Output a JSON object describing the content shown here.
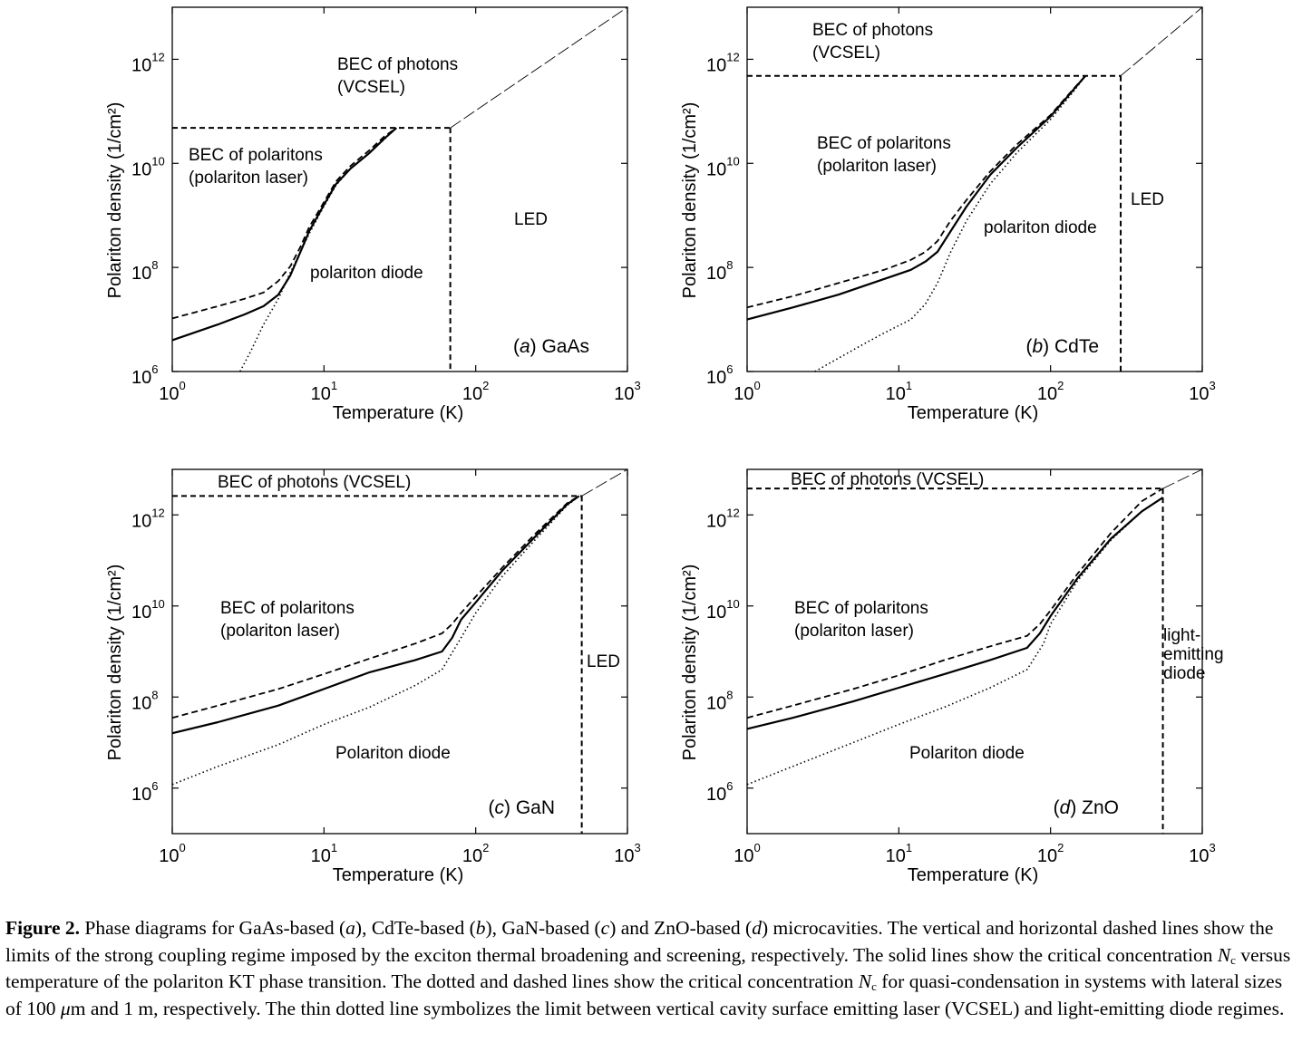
{
  "figure": {
    "caption": {
      "label": "Figure 2.",
      "segments": [
        {
          "t": " Phase diagrams for GaAs-based ("
        },
        {
          "t": "a",
          "i": true
        },
        {
          "t": "), CdTe-based ("
        },
        {
          "t": "b",
          "i": true
        },
        {
          "t": "), GaN-based ("
        },
        {
          "t": "c",
          "i": true
        },
        {
          "t": ") and ZnO-based ("
        },
        {
          "t": "d",
          "i": true
        },
        {
          "t": ") microcavities. The vertical and horizontal dashed lines show the limits of the strong coupling regime imposed by the exciton thermal broadening and screening, respectively. The solid lines show the critical concentration "
        },
        {
          "t": "N",
          "i": true
        },
        {
          "t": "c",
          "sub": true
        },
        {
          "t": " versus temperature of the polariton KT phase transition. The dotted and dashed lines show the critical concentration "
        },
        {
          "t": "N",
          "i": true
        },
        {
          "t": "c",
          "sub": true
        },
        {
          "t": " for quasi-condensation in systems with lateral sizes of 100 "
        },
        {
          "t": "μ",
          "i": true
        },
        {
          "t": "m and 1 m, respectively. The thin dotted line symbolizes the limit between vertical cavity surface emitting laser (VCSEL) and light-emitting diode regimes."
        }
      ]
    }
  },
  "chart_data": [
    {
      "type": "line",
      "panel": "a",
      "material": "GaAs",
      "xlabel": "Temperature (K)",
      "ylabel": "Polariton density (1/cm²)",
      "xscale": "log",
      "yscale": "log",
      "xlim": [
        1,
        1000
      ],
      "ylim": [
        1000000.0,
        10000000000000.0
      ],
      "xticks": [
        {
          "base": "10",
          "exp": "0",
          "v": 1
        },
        {
          "base": "10",
          "exp": "1",
          "v": 10
        },
        {
          "base": "10",
          "exp": "2",
          "v": 100
        },
        {
          "base": "10",
          "exp": "3",
          "v": 1000
        }
      ],
      "yticks": [
        {
          "base": "10",
          "exp": "6",
          "v": 1000000.0
        },
        {
          "base": "10",
          "exp": "8",
          "v": 100000000.0
        },
        {
          "base": "10",
          "exp": "10",
          "v": 10000000000.0
        },
        {
          "base": "10",
          "exp": "12",
          "v": 1000000000000.0
        }
      ],
      "tag": {
        "letter": "a",
        "material": "GaAs"
      },
      "limits": {
        "broadening_T": 68,
        "screening_N": 48000000000.0
      },
      "series": [
        {
          "name": "KT phase transition (solid)",
          "style": "solid",
          "x": [
            1,
            2,
            3,
            4,
            5,
            6,
            7,
            8,
            10,
            12,
            15,
            20,
            25,
            30
          ],
          "y": [
            4000000.0,
            8000000.0,
            12500000.0,
            18000000.0,
            30000000.0,
            70000000.0,
            200000000.0,
            500000000.0,
            1600000000.0,
            4000000000.0,
            8000000000.0,
            16000000000.0,
            30000000000.0,
            48000000000.0
          ]
        },
        {
          "name": "quasi-condensation, 1 m (dashed)",
          "style": "dashed",
          "x": [
            1,
            2,
            3,
            4,
            5,
            6,
            7,
            8,
            10,
            12,
            15,
            20,
            25,
            30
          ],
          "y": [
            10500000.0,
            18000000.0,
            25000000.0,
            33000000.0,
            55000000.0,
            105000000.0,
            250000000.0,
            600000000.0,
            1800000000.0,
            4500000000.0,
            9000000000.0,
            18000000000.0,
            33000000000.0,
            48000000000.0
          ]
        },
        {
          "name": "quasi-condensation, 100 µm (dotted)",
          "style": "dotted",
          "x": [
            2.8,
            3.3,
            4,
            5,
            6,
            7,
            8,
            10,
            12,
            15,
            20,
            25,
            30
          ],
          "y": [
            1000000.0,
            2500000.0,
            8000000.0,
            25000000.0,
            80000000.0,
            200000000.0,
            450000000.0,
            1500000000.0,
            3800000000.0,
            8000000000.0,
            16000000000.0,
            29000000000.0,
            48000000000.0
          ]
        },
        {
          "name": "VCSEL / LED limit (thin dotted)",
          "style": "thin",
          "x": [
            68,
            1000
          ],
          "y": [
            48000000000.0,
            10000000000000.0
          ]
        }
      ],
      "annotations": [
        {
          "lines": [
            "BEC of photons",
            "(VCSEL)"
          ],
          "region": "upper middle"
        },
        {
          "lines": [
            "BEC of polaritons",
            "(polariton laser)"
          ],
          "region": "upper left"
        },
        {
          "lines": [
            "polariton diode"
          ],
          "region": "lower middle"
        },
        {
          "lines": [
            "LED"
          ],
          "region": "right"
        }
      ]
    },
    {
      "type": "line",
      "panel": "b",
      "material": "CdTe",
      "xlabel": "Temperature (K)",
      "ylabel": "Polariton density (1/cm²)",
      "xscale": "log",
      "yscale": "log",
      "xlim": [
        1,
        1000
      ],
      "ylim": [
        1000000.0,
        10000000000000.0
      ],
      "xticks": [
        {
          "base": "10",
          "exp": "0",
          "v": 1
        },
        {
          "base": "10",
          "exp": "1",
          "v": 10
        },
        {
          "base": "10",
          "exp": "2",
          "v": 100
        },
        {
          "base": "10",
          "exp": "3",
          "v": 1000
        }
      ],
      "yticks": [
        {
          "base": "10",
          "exp": "6",
          "v": 1000000.0
        },
        {
          "base": "10",
          "exp": "8",
          "v": 100000000.0
        },
        {
          "base": "10",
          "exp": "10",
          "v": 10000000000.0
        },
        {
          "base": "10",
          "exp": "12",
          "v": 1000000000000.0
        }
      ],
      "tag": {
        "letter": "b",
        "material": "CdTe"
      },
      "limits": {
        "broadening_T": 290,
        "screening_N": 480000000000.0
      },
      "series": [
        {
          "name": "KT phase transition (solid)",
          "style": "solid",
          "x": [
            1,
            2,
            4,
            8,
            12,
            15,
            18,
            22,
            28,
            40,
            60,
            100,
            140,
            170
          ],
          "y": [
            10000000.0,
            17000000.0,
            30000000.0,
            60000000.0,
            90000000.0,
            130000000.0,
            200000000.0,
            500000000.0,
            1500000000.0,
            6000000000.0,
            20000000000.0,
            80000000000.0,
            250000000000.0,
            480000000000.0
          ]
        },
        {
          "name": "quasi-condensation, 1 m (dashed)",
          "style": "dashed",
          "x": [
            1,
            2,
            4,
            8,
            12,
            15,
            18,
            22,
            28,
            40,
            60,
            100,
            140,
            170
          ],
          "y": [
            17000000.0,
            28000000.0,
            50000000.0,
            90000000.0,
            140000000.0,
            200000000.0,
            320000000.0,
            800000000.0,
            2000000000.0,
            7000000000.0,
            23000000000.0,
            85000000000.0,
            260000000000.0,
            480000000000.0
          ]
        },
        {
          "name": "quasi-condensation, 100 µm (dotted)",
          "style": "dotted",
          "x": [
            2.8,
            4,
            6,
            8,
            12,
            15,
            18,
            22,
            28,
            40,
            60,
            100,
            140,
            170
          ],
          "y": [
            1000000.0,
            1800000.0,
            3500000.0,
            5500000.0,
            10000000.0,
            20000000.0,
            50000000.0,
            200000000.0,
            800000000.0,
            4000000000.0,
            16000000000.0,
            70000000000.0,
            230000000000.0,
            480000000000.0
          ]
        },
        {
          "name": "VCSEL / LED limit (thin dotted)",
          "style": "thin",
          "x": [
            290,
            1000
          ],
          "y": [
            480000000000.0,
            10000000000000.0
          ]
        }
      ],
      "annotations": [
        {
          "lines": [
            "BEC of photons",
            "(VCSEL)"
          ],
          "region": "top"
        },
        {
          "lines": [
            "BEC of polaritons",
            "(polariton laser)"
          ],
          "region": "upper middle"
        },
        {
          "lines": [
            "polariton diode"
          ],
          "region": "middle right"
        },
        {
          "lines": [
            "LED"
          ],
          "region": "right"
        }
      ]
    },
    {
      "type": "line",
      "panel": "c",
      "material": "GaN",
      "xlabel": "Temperature (K)",
      "ylabel": "Polariton density (1/cm²)",
      "xscale": "log",
      "yscale": "log",
      "xlim": [
        1,
        1000
      ],
      "ylim": [
        100000.0,
        10000000000000.0
      ],
      "xticks": [
        {
          "base": "10",
          "exp": "0",
          "v": 1
        },
        {
          "base": "10",
          "exp": "1",
          "v": 10
        },
        {
          "base": "10",
          "exp": "2",
          "v": 100
        },
        {
          "base": "10",
          "exp": "3",
          "v": 1000
        }
      ],
      "yticks": [
        {
          "base": "10",
          "exp": "6",
          "v": 1000000.0
        },
        {
          "base": "10",
          "exp": "8",
          "v": 100000000.0
        },
        {
          "base": "10",
          "exp": "10",
          "v": 10000000000.0
        },
        {
          "base": "10",
          "exp": "12",
          "v": 1000000000000.0
        }
      ],
      "tag": {
        "letter": "c",
        "material": "GaN"
      },
      "limits": {
        "broadening_T": 500,
        "screening_N": 2600000000000.0
      },
      "series": [
        {
          "name": "KT phase transition (solid)",
          "style": "solid",
          "x": [
            1,
            2,
            5,
            10,
            20,
            40,
            60,
            70,
            80,
            100,
            150,
            250,
            400,
            480
          ],
          "y": [
            16000000.0,
            28000000.0,
            65000000.0,
            150000000.0,
            350000000.0,
            650000000.0,
            1000000000.0,
            2000000000.0,
            5000000000.0,
            12000000000.0,
            60000000000.0,
            350000000000.0,
            1700000000000.0,
            2600000000000.0
          ]
        },
        {
          "name": "quasi-condensation, 1 m (dashed)",
          "style": "dashed",
          "x": [
            1,
            2,
            5,
            10,
            20,
            40,
            60,
            70,
            80,
            100,
            150,
            250,
            400,
            480
          ],
          "y": [
            35000000.0,
            65000000.0,
            150000000.0,
            320000000.0,
            700000000.0,
            1500000000.0,
            2500000000.0,
            4000000000.0,
            7000000000.0,
            16000000000.0,
            70000000000.0,
            400000000000.0,
            1800000000000.0,
            2600000000000.0
          ]
        },
        {
          "name": "quasi-condensation, 100 µm (dotted)",
          "style": "dotted",
          "x": [
            1,
            2,
            5,
            10,
            20,
            40,
            60,
            80,
            100,
            150,
            250,
            400,
            480
          ],
          "y": [
            1200000.0,
            3000000.0,
            9000000.0,
            25000000.0,
            60000000.0,
            180000000.0,
            400000000.0,
            2000000000.0,
            7000000000.0,
            45000000000.0,
            300000000000.0,
            1600000000000.0,
            2600000000000.0
          ]
        },
        {
          "name": "VCSEL / LED limit (thin dotted)",
          "style": "thin",
          "x": [
            500,
            1000
          ],
          "y": [
            2600000000000.0,
            10000000000000.0
          ]
        }
      ],
      "annotations": [
        {
          "lines": [
            "BEC of photons (VCSEL)"
          ],
          "region": "top"
        },
        {
          "lines": [
            "BEC of polaritons",
            "(polariton laser)"
          ],
          "region": "upper left"
        },
        {
          "lines": [
            "LED"
          ],
          "region": "right"
        },
        {
          "lines": [
            "Polariton diode"
          ],
          "region": "lower middle"
        }
      ]
    },
    {
      "type": "line",
      "panel": "d",
      "material": "ZnO",
      "xlabel": "Temperature (K)",
      "ylabel": "Polariton density (1/cm²)",
      "xscale": "log",
      "yscale": "log",
      "xlim": [
        1,
        1000
      ],
      "ylim": [
        100000.0,
        10000000000000.0
      ],
      "xticks": [
        {
          "base": "10",
          "exp": "0",
          "v": 1
        },
        {
          "base": "10",
          "exp": "1",
          "v": 10
        },
        {
          "base": "10",
          "exp": "2",
          "v": 100
        },
        {
          "base": "10",
          "exp": "3",
          "v": 1000
        }
      ],
      "yticks": [
        {
          "base": "10",
          "exp": "6",
          "v": 1000000.0
        },
        {
          "base": "10",
          "exp": "8",
          "v": 100000000.0
        },
        {
          "base": "10",
          "exp": "10",
          "v": 10000000000.0
        },
        {
          "base": "10",
          "exp": "12",
          "v": 1000000000000.0
        }
      ],
      "tag": {
        "letter": "d",
        "material": "ZnO"
      },
      "limits": {
        "broadening_T": 550,
        "screening_N": 3800000000000.0
      },
      "series": [
        {
          "name": "KT phase transition (solid)",
          "style": "solid",
          "x": [
            1,
            2,
            5,
            10,
            20,
            40,
            70,
            85,
            100,
            150,
            250,
            400,
            550
          ],
          "y": [
            20000000.0,
            35000000.0,
            80000000.0,
            160000000.0,
            320000000.0,
            650000000.0,
            1200000000.0,
            2500000000.0,
            6000000000.0,
            40000000000.0,
            300000000000.0,
            1200000000000.0,
            2400000000000.0
          ]
        },
        {
          "name": "quasi-condensation, 1 m (dashed)",
          "style": "dashed",
          "x": [
            1,
            2,
            5,
            10,
            20,
            40,
            70,
            85,
            100,
            150,
            250,
            400,
            550
          ],
          "y": [
            35000000.0,
            65000000.0,
            150000000.0,
            300000000.0,
            650000000.0,
            1300000000.0,
            2200000000.0,
            4000000000.0,
            8000000000.0,
            50000000000.0,
            400000000000.0,
            2000000000000.0,
            3800000000000.0
          ]
        },
        {
          "name": "quasi-condensation, 100 µm (dotted)",
          "style": "dotted",
          "x": [
            1,
            2,
            5,
            10,
            20,
            40,
            70,
            90,
            100,
            150,
            250,
            400,
            550
          ],
          "y": [
            1200000.0,
            3000000.0,
            10000000.0,
            25000000.0,
            60000000.0,
            160000000.0,
            400000000.0,
            1500000000.0,
            4000000000.0,
            35000000000.0,
            280000000000.0,
            1200000000000.0,
            2400000000000.0
          ]
        },
        {
          "name": "VCSEL / LED limit (thin dotted)",
          "style": "thin",
          "x": [
            550,
            1000
          ],
          "y": [
            3800000000000.0,
            10000000000000.0
          ]
        }
      ],
      "annotations": [
        {
          "lines": [
            "BEC of photons (VCSEL)"
          ],
          "region": "top"
        },
        {
          "lines": [
            "BEC of polaritons",
            "(polariton laser)"
          ],
          "region": "upper left"
        },
        {
          "lines": [
            "light-",
            "emitting",
            "diode"
          ],
          "region": "right"
        },
        {
          "lines": [
            "Polariton diode"
          ],
          "region": "lower middle"
        }
      ]
    }
  ]
}
